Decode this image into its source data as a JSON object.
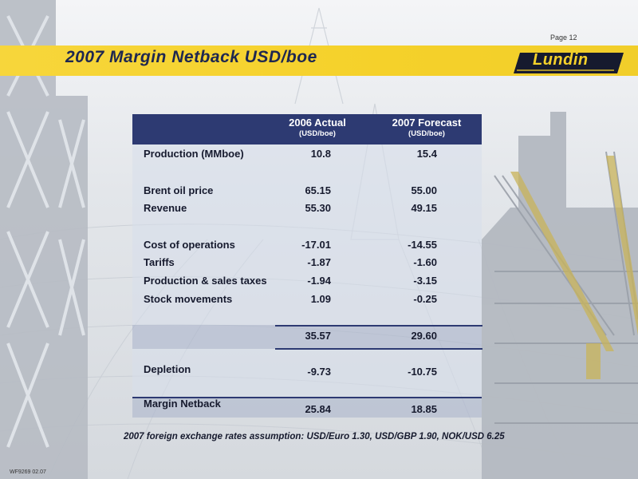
{
  "page_number": "Page 12",
  "title": "2007 Margin Netback USD/boe",
  "logo_text": "Lundin",
  "table": {
    "columns": [
      {
        "label": "2006 Actual",
        "unit": "(USD/boe)"
      },
      {
        "label": "2007 Forecast",
        "unit": "(USD/boe)"
      }
    ],
    "rows": [
      {
        "label": "Production (MMboe)",
        "a": "10.8",
        "b": "15.4"
      },
      {
        "label": "Brent oil price",
        "a": "65.15",
        "b": "55.00"
      },
      {
        "label": "Revenue",
        "a": "55.30",
        "b": "49.15"
      },
      {
        "label": "Cost of operations",
        "a": "-17.01",
        "b": "-14.55"
      },
      {
        "label": "Tariffs",
        "a": "-1.87",
        "b": "-1.60"
      },
      {
        "label": "Production & sales taxes",
        "a": "-1.94",
        "b": "-3.15"
      },
      {
        "label": "Stock movements",
        "a": "1.09",
        "b": "-0.25"
      },
      {
        "label": "",
        "a": "35.57",
        "b": "29.60"
      },
      {
        "label": "Depletion",
        "a": "-9.73",
        "b": "-10.75"
      },
      {
        "label": "Margin Netback",
        "a": "25.84",
        "b": "18.85"
      }
    ]
  },
  "footnote": "2007 foreign exchange rates assumption: USD/Euro 1.30, USD/GBP 1.90, NOK/USD 6.25",
  "reference_code": "WF9269 02.07",
  "colors": {
    "banner": "#f5d12a",
    "header": "#2d3a72",
    "title": "#1e2750"
  }
}
